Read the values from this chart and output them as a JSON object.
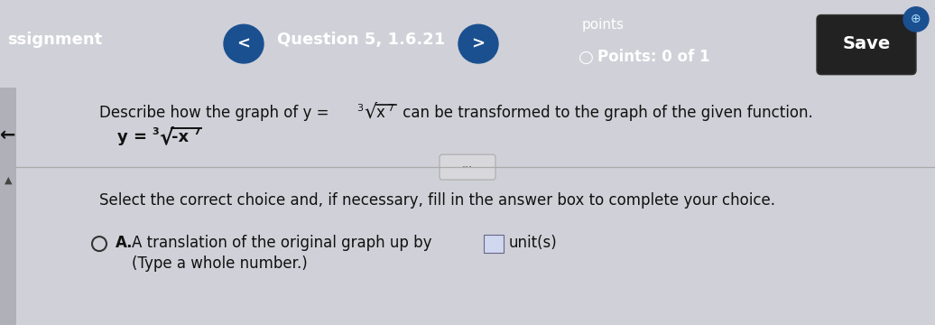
{
  "header_bg_color": "#2272b5",
  "header_text_color": "#ffffff",
  "header_question": "Question 5, 1.6.21",
  "header_points_label": "points",
  "header_points_value": "Points: 0 of 1",
  "header_save_button": "Save",
  "body_bg_color": "#d0d0d8",
  "content_bg_color": "#e8e8ec",
  "left_bar_color": "#b0b0b8",
  "select_text": "Select the correct choice and, if necessary, fill in the answer box to complete your choice.",
  "choice_A_text": "A translation of the original graph up by",
  "choice_A_suffix": "unit(s)",
  "choice_A_note": "(Type a whole number.)"
}
